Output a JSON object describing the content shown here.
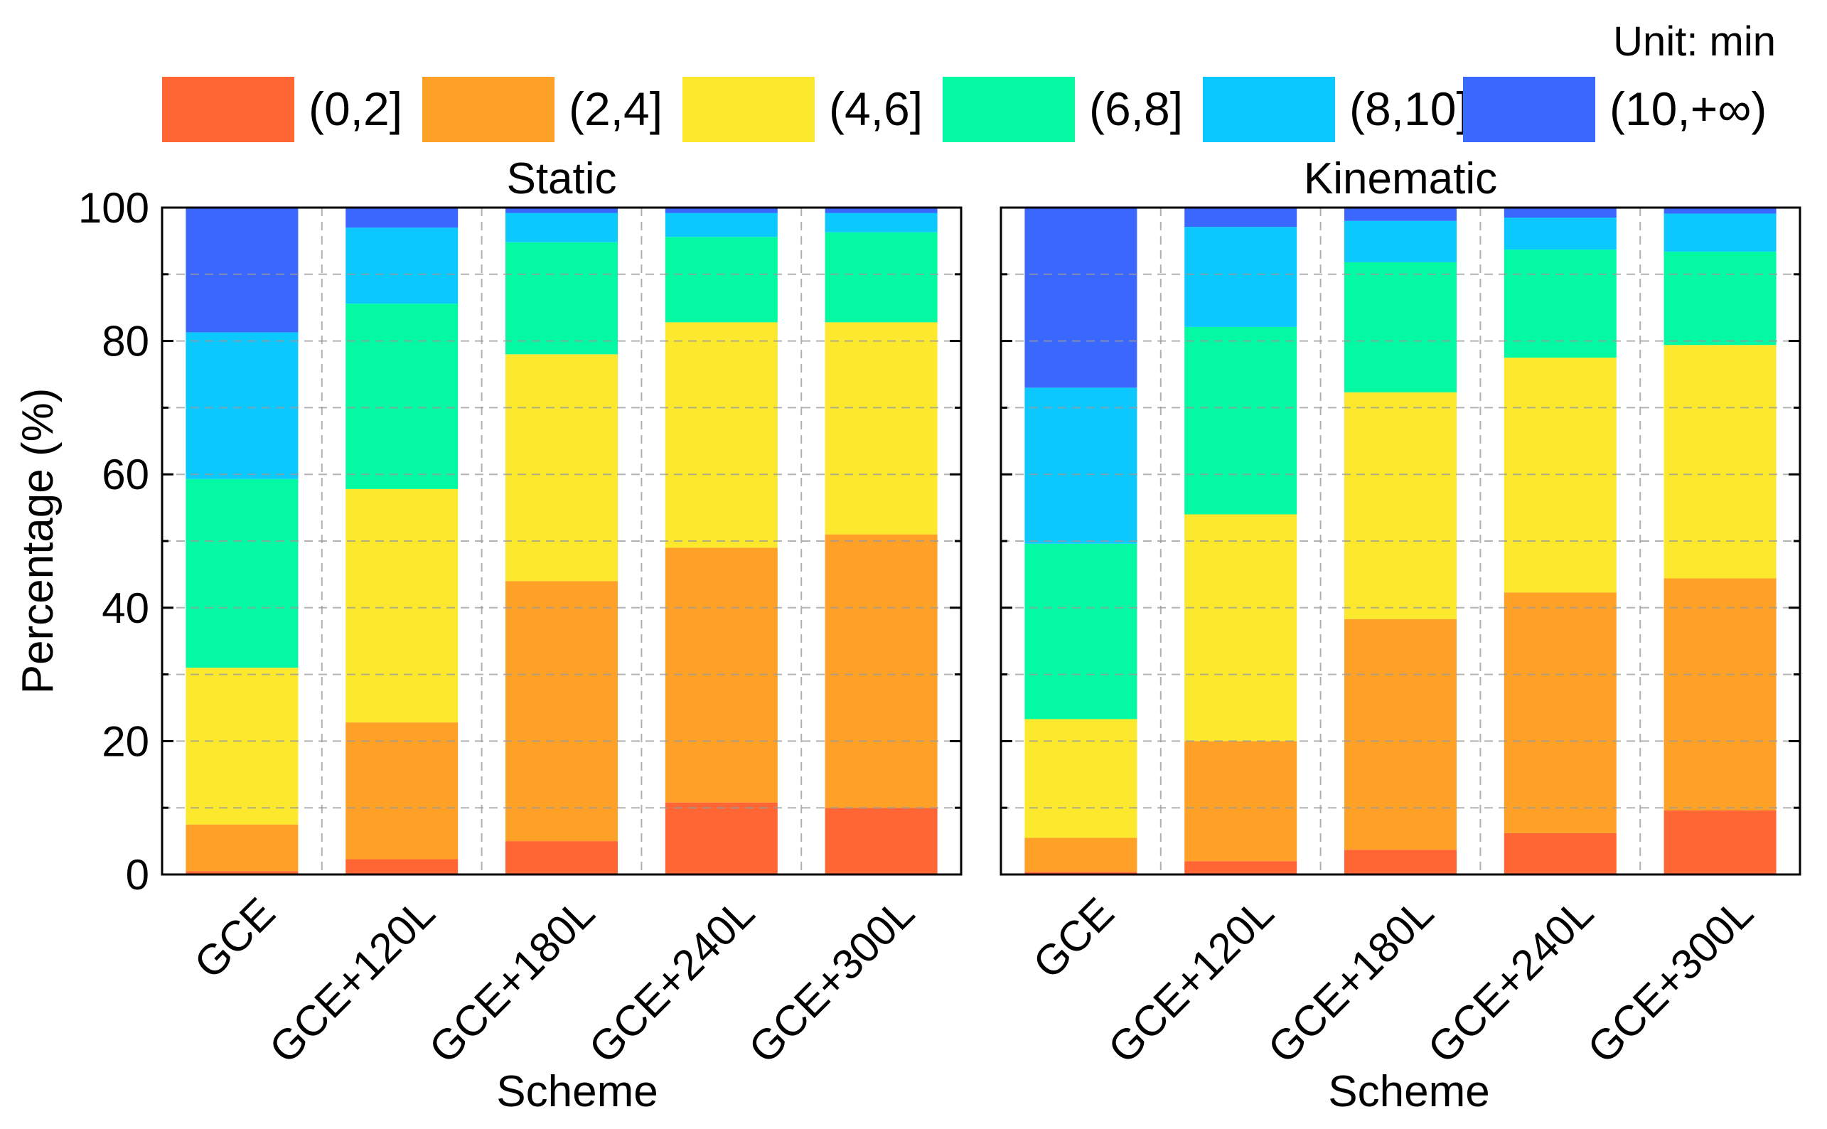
{
  "unit_label": "Unit: min",
  "legend": [
    {
      "label": "(0,2]",
      "color": "#FF6633"
    },
    {
      "label": "(2,4]",
      "color": "#FFA126"
    },
    {
      "label": "(4,6]",
      "color": "#FCE82C"
    },
    {
      "label": "(6,8]",
      "color": "#03F9A2"
    },
    {
      "label": "(8,10]",
      "color": "#0BC8FF"
    },
    {
      "label": "(10,+∞)",
      "color": "#3A67FD"
    }
  ],
  "chart_data": [
    {
      "type": "bar",
      "stacked": true,
      "title": "Static",
      "xlabel": "Scheme",
      "ylabel": "Percentage (%)",
      "ylim": [
        0,
        100
      ],
      "yticks": [
        "0",
        "20",
        "40",
        "60",
        "80",
        "100"
      ],
      "grid": true,
      "categories": [
        "GCE",
        "GCE+120L",
        "GCE+180L",
        "GCE+240L",
        "GCE+300L"
      ],
      "series": [
        {
          "name": "(0,2]",
          "values": [
            0.5,
            2.3,
            5.0,
            10.8,
            10.0
          ]
        },
        {
          "name": "(2,4]",
          "values": [
            7.0,
            20.5,
            39.0,
            38.2,
            41.0
          ]
        },
        {
          "name": "(4,6]",
          "values": [
            23.5,
            35.0,
            34.0,
            33.8,
            31.8
          ]
        },
        {
          "name": "(6,8]",
          "values": [
            28.3,
            27.8,
            16.8,
            12.8,
            13.5
          ]
        },
        {
          "name": "(8,10]",
          "values": [
            22.0,
            11.4,
            4.4,
            3.6,
            2.9
          ]
        },
        {
          "name": "(10,+∞)",
          "values": [
            18.7,
            3.0,
            0.8,
            0.8,
            0.8
          ]
        }
      ]
    },
    {
      "type": "bar",
      "stacked": true,
      "title": "Kinematic",
      "xlabel": "Scheme",
      "ylabel": "",
      "ylim": [
        0,
        100
      ],
      "yticks": [
        "0",
        "20",
        "40",
        "60",
        "80",
        "100"
      ],
      "grid": true,
      "categories": [
        "GCE",
        "GCE+120L",
        "GCE+180L",
        "GCE+240L",
        "GCE+300L"
      ],
      "series": [
        {
          "name": "(0,2]",
          "values": [
            0.4,
            2.0,
            3.7,
            6.2,
            9.6
          ]
        },
        {
          "name": "(2,4]",
          "values": [
            5.1,
            18.0,
            34.6,
            36.1,
            34.8
          ]
        },
        {
          "name": "(4,6]",
          "values": [
            17.8,
            34.0,
            34.0,
            35.2,
            35.0
          ]
        },
        {
          "name": "(6,8]",
          "values": [
            26.3,
            28.1,
            19.5,
            16.2,
            14.0
          ]
        },
        {
          "name": "(8,10]",
          "values": [
            23.4,
            15.0,
            6.2,
            4.8,
            5.7
          ]
        },
        {
          "name": "(10,+∞)",
          "values": [
            27.0,
            2.9,
            2.0,
            1.5,
            0.9
          ]
        }
      ]
    }
  ]
}
